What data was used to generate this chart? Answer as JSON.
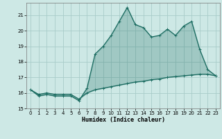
{
  "xlabel": "Humidex (Indice chaleur)",
  "bg_color": "#cde8e5",
  "grid_color": "#a8ccc9",
  "line_color": "#1a6b60",
  "fill_color": "#1a6b60",
  "x": [
    0,
    1,
    2,
    3,
    4,
    5,
    6,
    7,
    8,
    9,
    10,
    11,
    12,
    13,
    14,
    15,
    16,
    17,
    18,
    19,
    20,
    21,
    22,
    23
  ],
  "y_upper": [
    16.2,
    15.8,
    15.9,
    15.8,
    15.8,
    15.8,
    15.5,
    16.3,
    18.5,
    19.0,
    19.7,
    20.6,
    21.5,
    20.4,
    20.2,
    19.6,
    19.7,
    20.1,
    19.7,
    20.3,
    20.6,
    18.8,
    17.5,
    17.1
  ],
  "y_lower": [
    16.2,
    15.9,
    16.0,
    15.9,
    15.9,
    15.9,
    15.6,
    16.0,
    16.2,
    16.3,
    16.4,
    16.5,
    16.6,
    16.7,
    16.75,
    16.85,
    16.9,
    17.0,
    17.05,
    17.1,
    17.15,
    17.2,
    17.2,
    17.1
  ],
  "ylim": [
    15.0,
    21.8
  ],
  "xlim": [
    -0.5,
    23.5
  ],
  "yticks": [
    15,
    16,
    17,
    18,
    19,
    20,
    21
  ],
  "xticks": [
    0,
    1,
    2,
    3,
    4,
    5,
    6,
    7,
    8,
    9,
    10,
    11,
    12,
    13,
    14,
    15,
    16,
    17,
    18,
    19,
    20,
    21,
    22,
    23
  ],
  "tick_fontsize": 5.0,
  "xlabel_fontsize": 6.0,
  "linewidth": 0.9,
  "marker_size": 2.5,
  "fill_alpha": 0.25
}
